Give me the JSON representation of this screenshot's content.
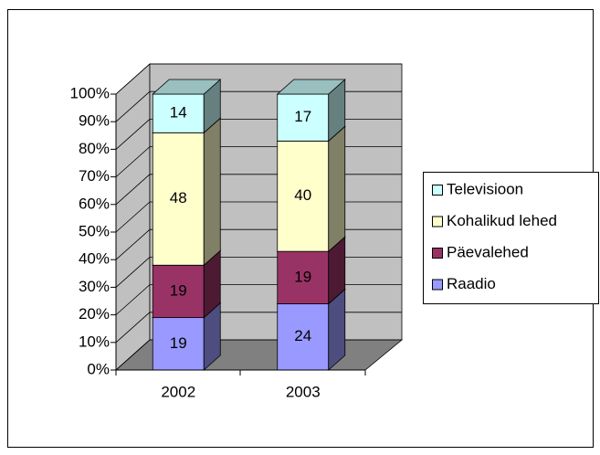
{
  "chart_data": {
    "type": "bar3d_stacked",
    "categories": [
      "2002",
      "2003"
    ],
    "series": [
      {
        "name": "Raadio",
        "color": "#9999ff",
        "values": [
          19,
          24
        ]
      },
      {
        "name": "Päevalehed",
        "color": "#993366",
        "values": [
          19,
          19
        ]
      },
      {
        "name": "Kohalikud lehed",
        "color": "#ffffcc",
        "values": [
          48,
          40
        ]
      },
      {
        "name": "Televisioon",
        "color": "#ccffff",
        "values": [
          14,
          17
        ]
      }
    ],
    "ylim": [
      0,
      100
    ],
    "yticks": [
      {
        "value": 0,
        "label": "0%"
      },
      {
        "value": 10,
        "label": "10%"
      },
      {
        "value": 20,
        "label": "20%"
      },
      {
        "value": 30,
        "label": "30%"
      },
      {
        "value": 40,
        "label": "40%"
      },
      {
        "value": 50,
        "label": "50%"
      },
      {
        "value": 60,
        "label": "60%"
      },
      {
        "value": 70,
        "label": "70%"
      },
      {
        "value": 80,
        "label": "80%"
      },
      {
        "value": 90,
        "label": "90%"
      },
      {
        "value": 100,
        "label": "100%"
      }
    ],
    "grid": true,
    "legend": "right"
  }
}
